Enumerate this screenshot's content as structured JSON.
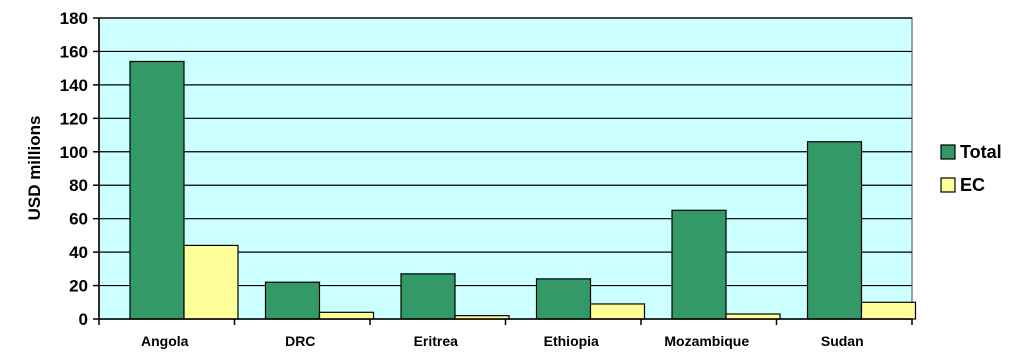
{
  "chart_data": {
    "type": "bar",
    "title": "",
    "xlabel": "",
    "ylabel": "USD millions",
    "ylim": [
      0,
      180
    ],
    "yticks": [
      0,
      20,
      40,
      60,
      80,
      100,
      120,
      140,
      160,
      180
    ],
    "grid": true,
    "legend_position": "right",
    "categories": [
      "Angola",
      "DRC",
      "Eritrea",
      "Ethiopia",
      "Mozambique",
      "Sudan"
    ],
    "series": [
      {
        "name": "Total",
        "color": "#339966",
        "values": [
          154,
          22,
          27,
          24,
          65,
          106
        ]
      },
      {
        "name": "EC",
        "color": "#FFFF99",
        "values": [
          44,
          4,
          2,
          9,
          3,
          10
        ]
      }
    ],
    "plot_background": "#CCFFFF"
  }
}
